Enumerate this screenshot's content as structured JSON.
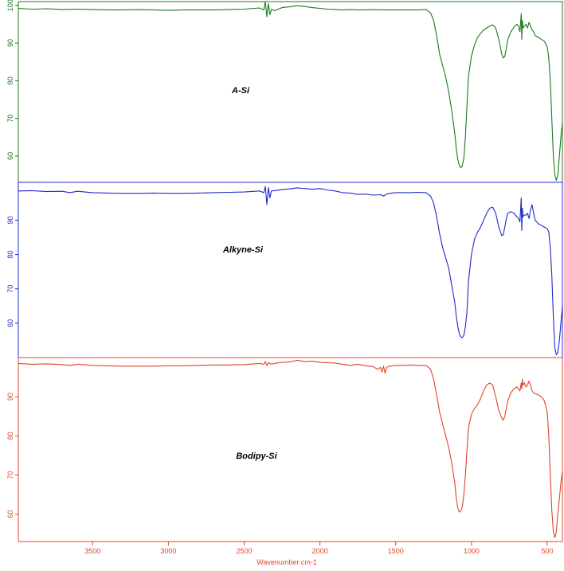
{
  "chart_data": {
    "type": "line",
    "xlabel": "Wavenumber cm-1",
    "xlim": [
      3990,
      400
    ],
    "x_ticks": [
      3500,
      3000,
      2500,
      2000,
      1500,
      1000,
      500
    ],
    "panels": [
      {
        "series_name": "A-Si",
        "color": "#1a7a1a",
        "ylim": [
          53,
          101
        ],
        "y_ticks": [
          60,
          70,
          80,
          90,
          100
        ],
        "x": [
          3990,
          3900,
          3800,
          3700,
          3600,
          3500,
          3400,
          3300,
          3200,
          3100,
          3000,
          2900,
          2800,
          2700,
          2600,
          2500,
          2400,
          2370,
          2360,
          2350,
          2340,
          2330,
          2320,
          2300,
          2250,
          2200,
          2150,
          2100,
          2050,
          2000,
          1950,
          1900,
          1850,
          1800,
          1750,
          1700,
          1650,
          1600,
          1550,
          1500,
          1450,
          1400,
          1350,
          1300,
          1270,
          1250,
          1230,
          1210,
          1190,
          1170,
          1150,
          1130,
          1110,
          1100,
          1090,
          1080,
          1070,
          1060,
          1050,
          1040,
          1030,
          1020,
          1000,
          980,
          960,
          940,
          920,
          900,
          880,
          860,
          840,
          820,
          800,
          790,
          780,
          770,
          760,
          740,
          720,
          700,
          690,
          680,
          672,
          668,
          664,
          660,
          650,
          640,
          630,
          620,
          610,
          600,
          590,
          580,
          560,
          540,
          520,
          500,
          490,
          480,
          470,
          460,
          450,
          440,
          430,
          420,
          410,
          400
        ],
        "y": [
          99.2,
          99.0,
          99.1,
          98.9,
          99.0,
          98.9,
          98.8,
          98.8,
          98.9,
          98.8,
          98.7,
          98.8,
          98.8,
          98.8,
          98.9,
          99.0,
          99.3,
          98.8,
          101.0,
          97.0,
          100.5,
          97.5,
          99.0,
          98.6,
          99.4,
          99.6,
          99.9,
          99.7,
          99.4,
          99.2,
          99.0,
          98.9,
          98.8,
          98.9,
          98.8,
          98.8,
          98.9,
          98.8,
          98.8,
          98.8,
          98.8,
          98.8,
          98.8,
          98.9,
          98.0,
          96.0,
          92.0,
          87.0,
          84.0,
          81.0,
          77.0,
          72.0,
          66.0,
          62.0,
          59.0,
          57.5,
          56.9,
          57.4,
          59.5,
          65.0,
          73.0,
          81.0,
          86.5,
          89.5,
          91.5,
          92.5,
          93.5,
          94.0,
          94.5,
          94.8,
          94.0,
          91.0,
          87.0,
          86.0,
          86.5,
          88.5,
          91.0,
          93.0,
          94.2,
          95.0,
          94.5,
          93.0,
          97.8,
          91.0,
          96.0,
          94.0,
          94.5,
          95.0,
          94.0,
          95.5,
          94.5,
          93.5,
          93.0,
          92.0,
          91.5,
          91.0,
          90.5,
          89.0,
          86.0,
          80.0,
          70.0,
          60.0,
          55.0,
          53.5,
          55.0,
          60.0,
          65.0,
          69.0
        ]
      },
      {
        "series_name": "Alkyne-Si",
        "color": "#1f28c8",
        "ylim": [
          50,
          101
        ],
        "y_ticks": [
          60,
          70,
          80,
          90
        ],
        "x": [
          3990,
          3900,
          3800,
          3700,
          3650,
          3600,
          3500,
          3400,
          3300,
          3200,
          3100,
          3000,
          2900,
          2800,
          2700,
          2600,
          2500,
          2400,
          2370,
          2360,
          2350,
          2340,
          2330,
          2320,
          2300,
          2250,
          2200,
          2150,
          2100,
          2050,
          2000,
          1950,
          1900,
          1850,
          1800,
          1750,
          1700,
          1650,
          1600,
          1580,
          1560,
          1540,
          1500,
          1450,
          1400,
          1350,
          1300,
          1270,
          1250,
          1230,
          1210,
          1190,
          1170,
          1150,
          1130,
          1110,
          1100,
          1090,
          1080,
          1070,
          1060,
          1050,
          1040,
          1030,
          1020,
          1000,
          980,
          960,
          940,
          920,
          900,
          880,
          860,
          840,
          820,
          800,
          790,
          780,
          770,
          760,
          740,
          720,
          700,
          690,
          680,
          672,
          668,
          664,
          660,
          650,
          640,
          630,
          620,
          610,
          600,
          590,
          580,
          560,
          540,
          520,
          500,
          490,
          480,
          470,
          460,
          450,
          440,
          430,
          420,
          410,
          400
        ],
        "y": [
          98.5,
          98.6,
          98.3,
          98.4,
          98.0,
          98.4,
          98.0,
          97.9,
          97.8,
          97.8,
          97.9,
          97.8,
          97.8,
          97.9,
          98.0,
          98.1,
          98.2,
          98.5,
          98.0,
          99.8,
          94.5,
          99.5,
          96.5,
          98.5,
          98.6,
          98.9,
          99.1,
          99.4,
          99.2,
          99.0,
          99.2,
          98.8,
          98.5,
          98.0,
          97.9,
          97.5,
          97.6,
          97.3,
          97.4,
          97.0,
          97.6,
          97.8,
          98.0,
          98.0,
          98.0,
          98.1,
          98.0,
          97.0,
          95.0,
          91.0,
          86.0,
          82.0,
          79.0,
          76.0,
          71.0,
          66.0,
          62.0,
          59.0,
          57.0,
          56.0,
          55.8,
          56.5,
          59.0,
          63.0,
          72.0,
          80.0,
          84.5,
          86.5,
          88.0,
          90.0,
          92.0,
          93.5,
          93.8,
          92.0,
          88.0,
          85.5,
          85.8,
          88.0,
          90.5,
          92.0,
          92.5,
          92.0,
          91.0,
          90.5,
          89.5,
          96.5,
          87.0,
          93.5,
          91.0,
          91.5,
          91.5,
          92.0,
          90.5,
          93.0,
          94.5,
          92.0,
          90.0,
          89.0,
          88.5,
          88.0,
          87.5,
          86.5,
          82.0,
          74.0,
          62.0,
          53.0,
          50.8,
          51.5,
          55.0,
          60.0,
          65.0
        ]
      },
      {
        "series_name": "Bodipy-Si",
        "color": "#e0442a",
        "ylim": [
          53,
          100
        ],
        "y_ticks": [
          60,
          70,
          80,
          90
        ],
        "x": [
          3990,
          3900,
          3800,
          3700,
          3650,
          3600,
          3500,
          3400,
          3300,
          3200,
          3100,
          3000,
          2900,
          2800,
          2700,
          2600,
          2500,
          2400,
          2370,
          2360,
          2350,
          2340,
          2320,
          2300,
          2250,
          2200,
          2150,
          2100,
          2050,
          2000,
          1950,
          1900,
          1850,
          1800,
          1750,
          1700,
          1650,
          1620,
          1600,
          1590,
          1580,
          1570,
          1560,
          1540,
          1500,
          1450,
          1400,
          1350,
          1300,
          1270,
          1250,
          1230,
          1210,
          1190,
          1170,
          1150,
          1130,
          1110,
          1100,
          1090,
          1080,
          1070,
          1060,
          1050,
          1040,
          1030,
          1020,
          1000,
          980,
          960,
          940,
          920,
          900,
          880,
          860,
          840,
          820,
          800,
          790,
          780,
          770,
          760,
          740,
          720,
          700,
          690,
          680,
          672,
          668,
          664,
          660,
          650,
          640,
          630,
          620,
          610,
          600,
          590,
          580,
          560,
          540,
          520,
          500,
          490,
          480,
          470,
          460,
          450,
          440,
          430,
          420,
          410,
          400
        ],
        "y": [
          98.5,
          98.3,
          98.4,
          98.2,
          98.0,
          98.3,
          98.0,
          97.9,
          97.8,
          97.8,
          97.8,
          97.9,
          97.9,
          98.0,
          98.1,
          98.1,
          98.2,
          98.5,
          98.3,
          99.0,
          98.0,
          98.7,
          98.3,
          98.5,
          98.8,
          98.9,
          99.3,
          99.0,
          99.1,
          98.8,
          98.7,
          98.6,
          98.3,
          98.0,
          98.3,
          97.9,
          97.7,
          97.0,
          97.5,
          96.3,
          97.8,
          96.0,
          97.5,
          97.8,
          98.0,
          98.0,
          98.1,
          98.0,
          98.0,
          97.0,
          94.5,
          90.5,
          86.0,
          83.0,
          80.0,
          77.0,
          73.0,
          68.0,
          64.0,
          61.5,
          60.5,
          60.8,
          62.0,
          65.0,
          70.0,
          76.0,
          82.0,
          85.5,
          87.0,
          88.0,
          89.5,
          91.5,
          93.0,
          93.5,
          93.0,
          90.0,
          86.5,
          84.5,
          84.0,
          85.0,
          87.0,
          89.0,
          91.0,
          92.0,
          92.5,
          92.0,
          91.5,
          93.5,
          92.0,
          94.5,
          93.0,
          93.5,
          92.5,
          93.0,
          94.0,
          93.0,
          91.5,
          91.0,
          90.8,
          90.5,
          90.0,
          89.0,
          86.0,
          80.0,
          70.0,
          61.0,
          55.5,
          54.0,
          55.5,
          60.0,
          64.0,
          68.0,
          71.0
        ]
      }
    ]
  }
}
